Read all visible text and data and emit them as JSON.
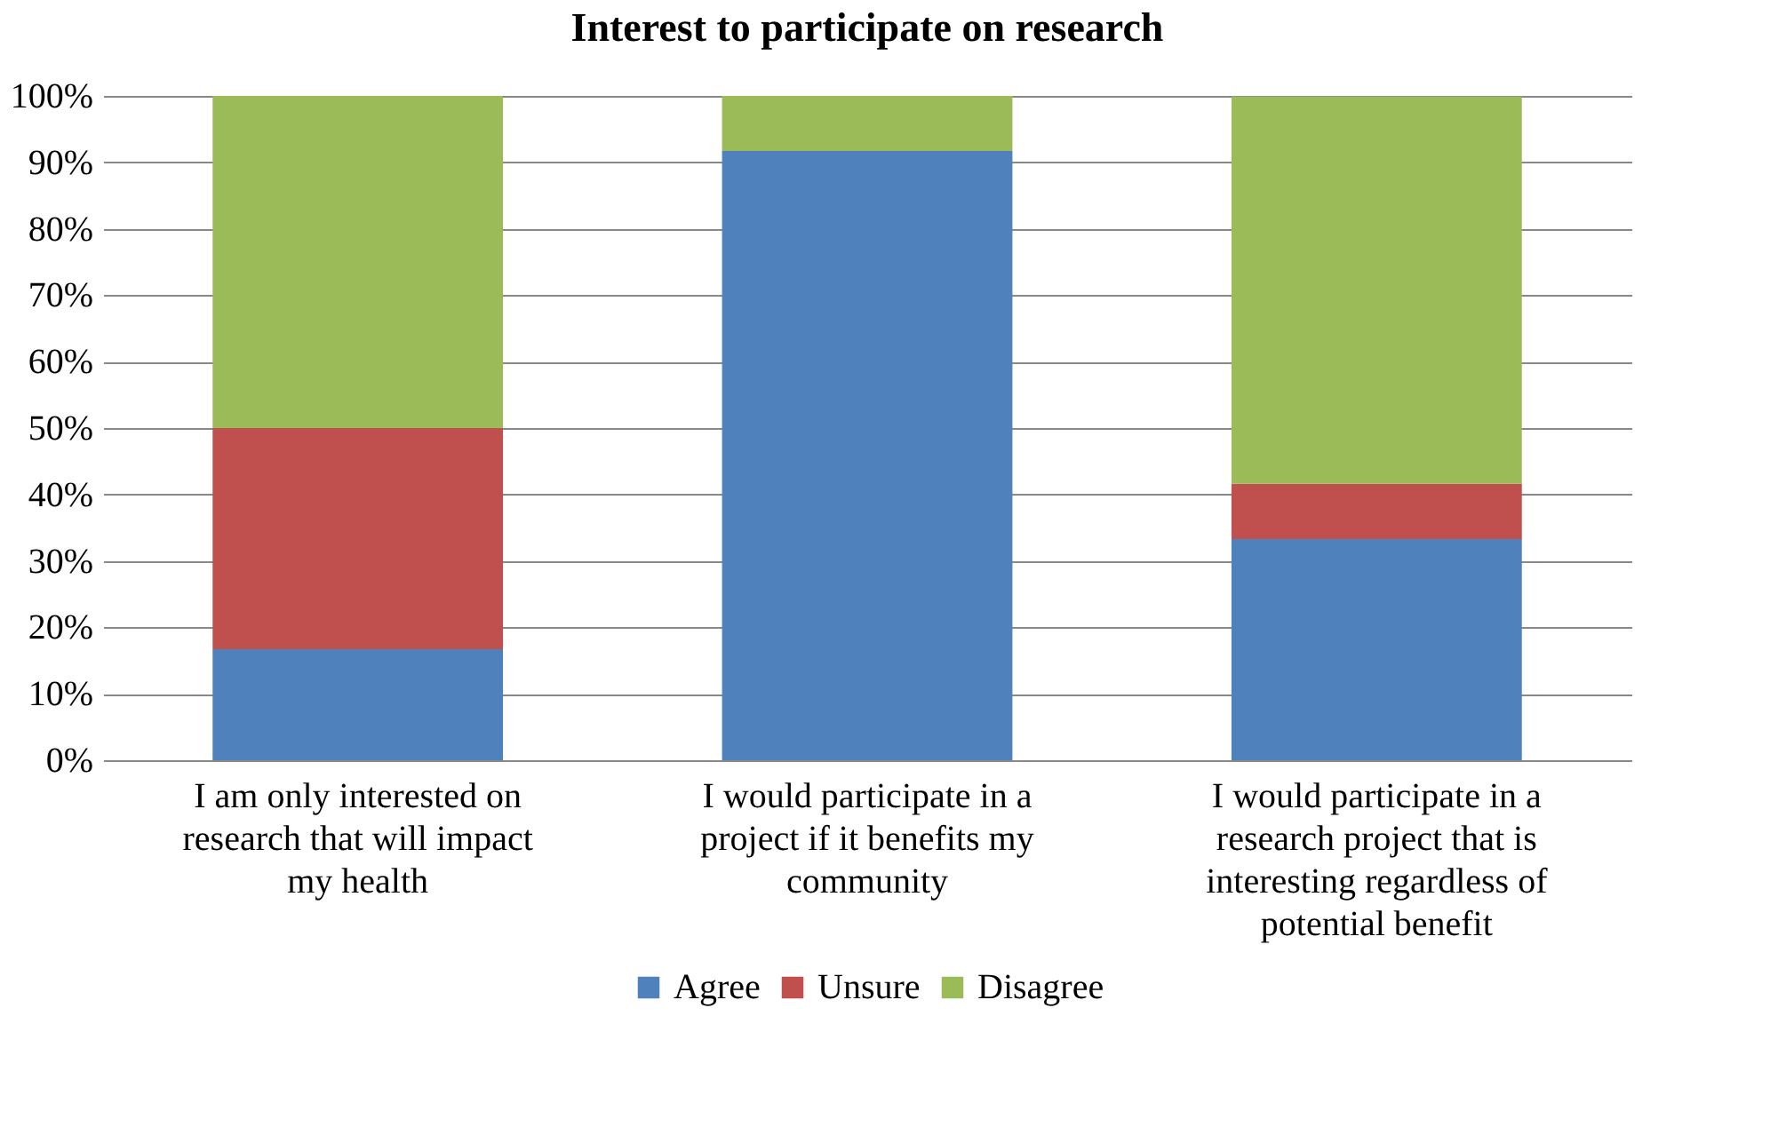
{
  "chart_data": {
    "type": "bar",
    "title": "Interest to participate on research",
    "stacked": true,
    "categories": [
      "I am only interested on research that will impact my health",
      "I would participate in a project if it benefits my community",
      "I would participate in a research project that is interesting regardless of potential benefit"
    ],
    "series": [
      {
        "name": "Agree",
        "color": "#4f81bd",
        "values": [
          16.7,
          91.7,
          33.3
        ]
      },
      {
        "name": "Unsure",
        "color": "#c0504d",
        "values": [
          33.3,
          0,
          8.3
        ]
      },
      {
        "name": "Disagree",
        "color": "#9bbb59",
        "values": [
          50,
          8.3,
          58.3
        ]
      }
    ],
    "ylim": [
      0,
      100
    ],
    "yticks": [
      {
        "value": 0,
        "label": "0%"
      },
      {
        "value": 10,
        "label": "10%"
      },
      {
        "value": 20,
        "label": "20%"
      },
      {
        "value": 30,
        "label": "30%"
      },
      {
        "value": 40,
        "label": "40%"
      },
      {
        "value": 50,
        "label": "50%"
      },
      {
        "value": 60,
        "label": "60%"
      },
      {
        "value": 70,
        "label": "70%"
      },
      {
        "value": 80,
        "label": "80%"
      },
      {
        "value": 90,
        "label": "90%"
      },
      {
        "value": 100,
        "label": "100%"
      }
    ],
    "grid": "y",
    "legend": "bottom"
  }
}
